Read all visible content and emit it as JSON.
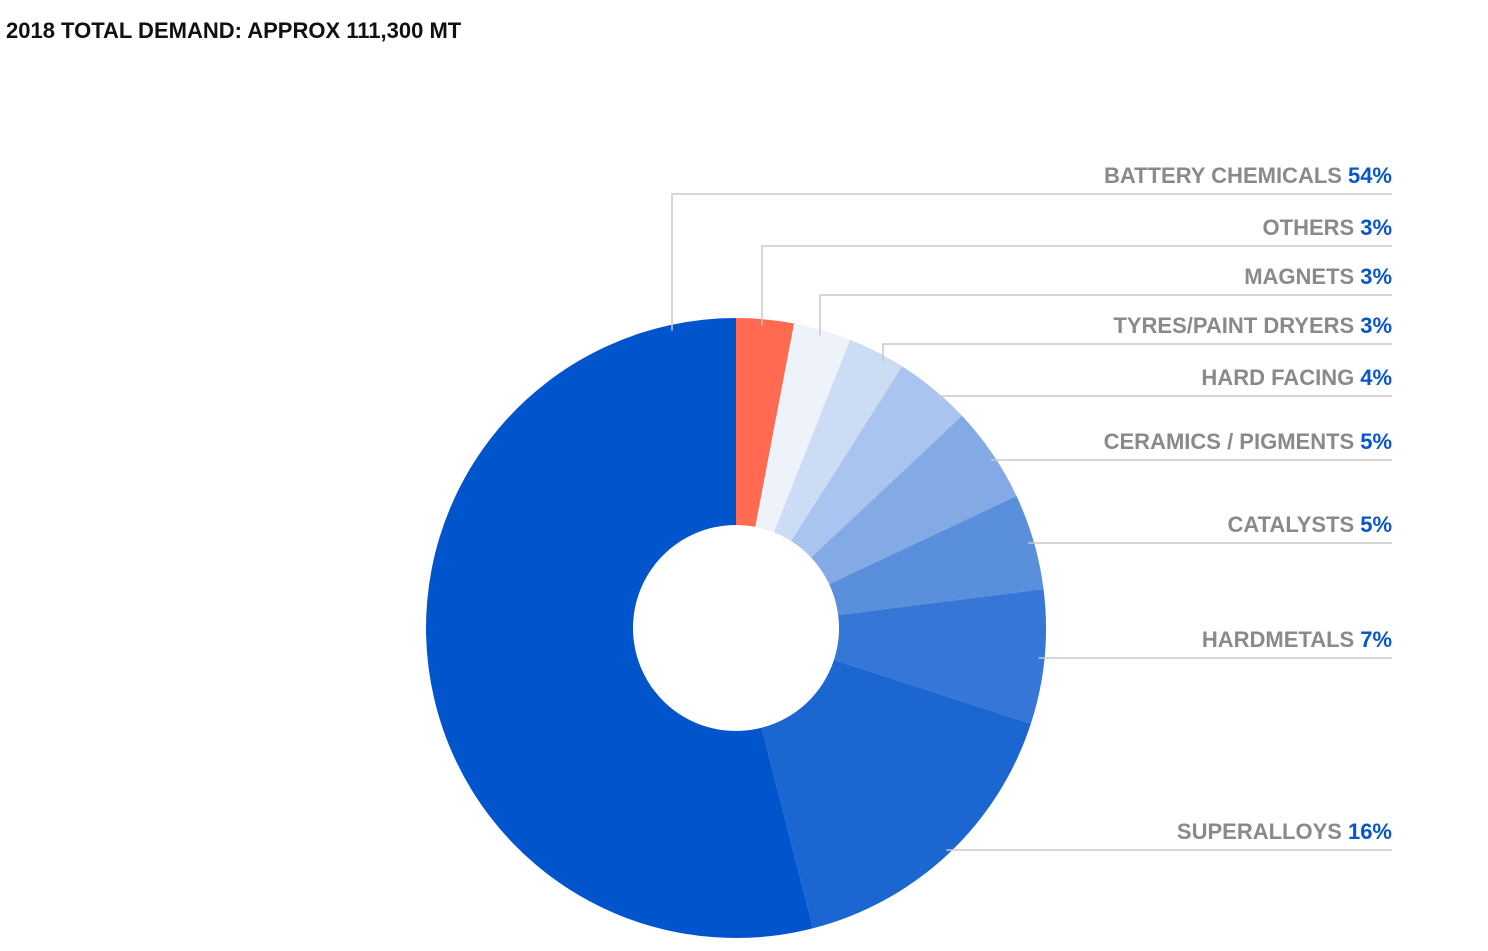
{
  "chart_data": {
    "type": "donut",
    "title": "2018 TOTAL DEMAND: APPROX 111,300 MT",
    "categories": [
      "OTHERS",
      "MAGNETS",
      "TYRES/PAINT DRYERS",
      "HARD FACING",
      "CERAMICS / PIGMENTS",
      "CATALYSTS",
      "HARDMETALS",
      "SUPERALLOYS",
      "BATTERY CHEMICALS"
    ],
    "values": [
      3,
      3,
      3,
      4,
      5,
      5,
      7,
      16,
      54
    ],
    "value_labels": [
      "3%",
      "3%",
      "3%",
      "4%",
      "5%",
      "5%",
      "7%",
      "16%",
      "54%"
    ],
    "colors": [
      "#ff6a50",
      "#eef2fb",
      "#cddcf5",
      "#a9c4ee",
      "#84aae6",
      "#5a8fdc",
      "#3576d6",
      "#1c66d2",
      "#0055cc"
    ]
  }
}
